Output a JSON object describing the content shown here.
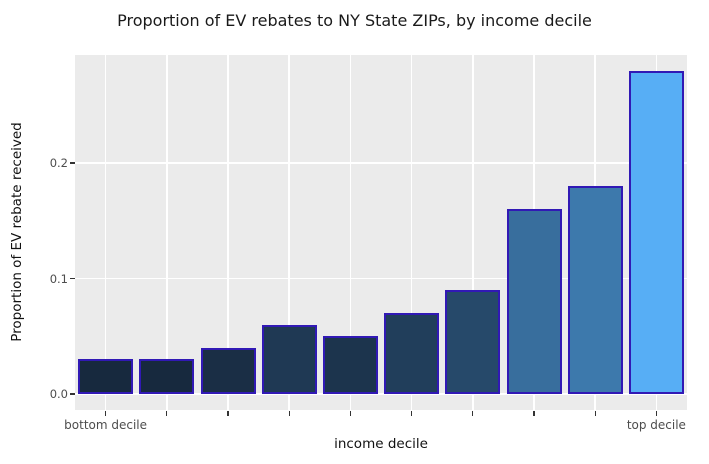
{
  "figure": {
    "title": "Proportion of EV rebates to NY State ZIPs, by income decile",
    "background_color": "#ffffff"
  },
  "chart_data": {
    "type": "bar",
    "title": "Proportion of EV rebates to NY State ZIPs, by income decile",
    "xlabel": "income decile",
    "ylabel": "Proportion of EV rebate received",
    "categories": [
      "decile 1",
      "decile 2",
      "decile 3",
      "decile 4",
      "decile 5",
      "decile 6",
      "decile 7",
      "decile 8",
      "decile 9",
      "decile 10"
    ],
    "values": [
      0.03,
      0.03,
      0.04,
      0.06,
      0.05,
      0.07,
      0.09,
      0.16,
      0.18,
      0.28
    ],
    "xtick_labels": [
      "bottom decile",
      "",
      "",
      "",
      "",
      "",
      "",
      "",
      "",
      "top decile"
    ],
    "yticks": [
      0.0,
      0.1,
      0.2
    ],
    "ytick_labels": [
      "0.0",
      "0.1",
      "0.2"
    ],
    "ylim": [
      0,
      0.293
    ],
    "grid": "major",
    "legend": "none",
    "panel_background": "#ebebeb",
    "gridline_color": "#ffffff",
    "bar_border_color": "#3119b5",
    "bar_fill_colors": [
      "#17293e",
      "#17293e",
      "#1a2e45",
      "#1f3954",
      "#1c344d",
      "#213e5b",
      "#26496a",
      "#386e9d",
      "#3d79ac",
      "#57aef5"
    ],
    "fill_gradient": {
      "low": "#17293e",
      "high": "#57aef5",
      "mapped_to": "value"
    }
  }
}
